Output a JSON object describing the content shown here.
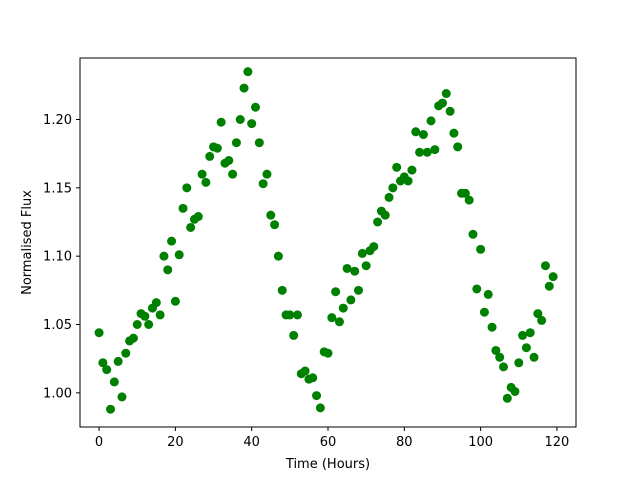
{
  "chart_data": {
    "type": "scatter",
    "title": "",
    "xlabel": "Time (Hours)",
    "ylabel": "Normalised Flux",
    "xlim": [
      -5,
      125
    ],
    "ylim": [
      0.975,
      1.245
    ],
    "xticks": [
      0,
      20,
      40,
      60,
      80,
      100,
      120
    ],
    "yticks": [
      1.0,
      1.05,
      1.1,
      1.15,
      1.2
    ],
    "xtick_labels": [
      "0",
      "20",
      "40",
      "60",
      "80",
      "100",
      "120"
    ],
    "ytick_labels": [
      "1.00",
      "1.05",
      "1.10",
      "1.15",
      "1.20"
    ],
    "grid": false,
    "marker_color": "#008000",
    "series": [
      {
        "x": [
          0,
          1,
          2,
          3,
          4,
          5,
          6,
          7,
          8,
          9,
          10,
          11,
          12,
          13,
          14,
          15,
          16,
          17,
          18,
          19,
          20,
          21,
          22,
          23,
          24,
          25,
          26,
          27,
          28,
          29,
          30,
          31,
          32,
          33,
          34,
          35,
          36,
          37,
          38,
          39,
          40,
          41,
          42,
          43,
          44,
          45,
          46,
          47,
          48,
          49,
          50,
          51,
          52,
          53,
          54,
          55,
          56,
          57,
          58,
          59,
          60,
          61,
          62,
          63,
          64,
          65,
          66,
          67,
          68,
          69,
          70,
          71,
          72,
          73,
          74,
          75,
          76,
          77,
          78,
          79,
          80,
          81,
          82,
          83,
          84,
          85,
          86,
          87,
          88,
          89,
          90,
          91,
          92,
          93,
          94,
          95,
          96,
          97,
          98,
          99,
          100,
          101,
          102,
          103,
          104,
          105,
          106,
          107,
          108,
          109,
          110,
          111,
          112,
          113,
          114,
          115,
          116,
          117,
          118,
          119
        ],
        "y": [
          1.044,
          1.022,
          1.017,
          0.988,
          1.008,
          1.023,
          0.997,
          1.029,
          1.038,
          1.04,
          1.05,
          1.058,
          1.056,
          1.05,
          1.062,
          1.066,
          1.057,
          1.1,
          1.09,
          1.111,
          1.067,
          1.101,
          1.135,
          1.15,
          1.121,
          1.127,
          1.129,
          1.16,
          1.154,
          1.173,
          1.18,
          1.179,
          1.198,
          1.168,
          1.17,
          1.16,
          1.183,
          1.2,
          1.223,
          1.235,
          1.197,
          1.209,
          1.183,
          1.153,
          1.16,
          1.13,
          1.123,
          1.1,
          1.075,
          1.057,
          1.057,
          1.042,
          1.057,
          1.014,
          1.016,
          1.01,
          1.011,
          0.998,
          0.989,
          1.03,
          1.029,
          1.055,
          1.074,
          1.052,
          1.062,
          1.091,
          1.068,
          1.089,
          1.075,
          1.102,
          1.093,
          1.104,
          1.107,
          1.125,
          1.133,
          1.13,
          1.143,
          1.15,
          1.165,
          1.155,
          1.158,
          1.155,
          1.163,
          1.191,
          1.176,
          1.189,
          1.176,
          1.199,
          1.178,
          1.21,
          1.212,
          1.219,
          1.206,
          1.19,
          1.18,
          1.146,
          1.146,
          1.141,
          1.116,
          1.076,
          1.105,
          1.059,
          1.072,
          1.048,
          1.031,
          1.026,
          1.019,
          0.996,
          1.004,
          1.001,
          1.022,
          1.042,
          1.033,
          1.044,
          1.026,
          1.058,
          1.053,
          1.093,
          1.078,
          1.085
        ]
      }
    ]
  }
}
